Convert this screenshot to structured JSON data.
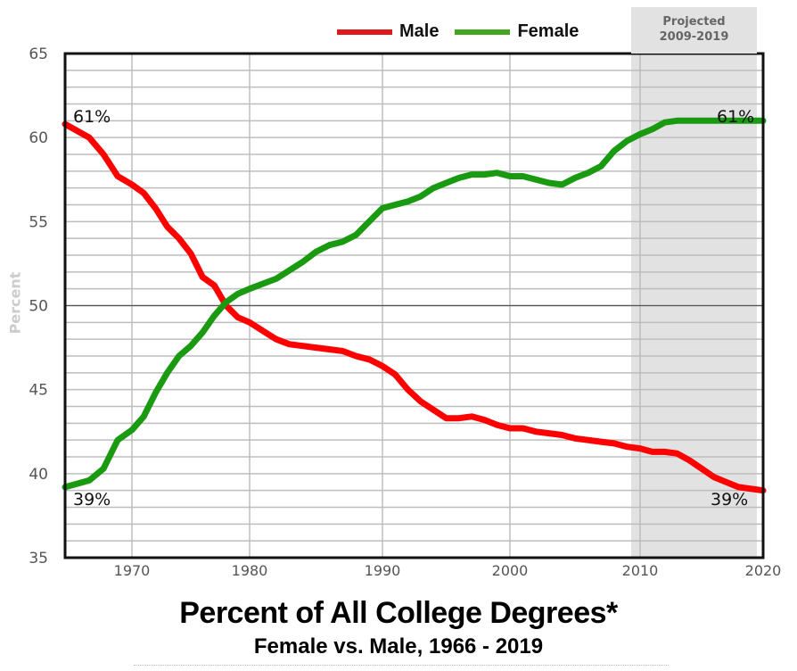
{
  "legend": {
    "male_label": "Male",
    "female_label": "Female",
    "male_color": "#e01a1a",
    "female_color": "#44a520"
  },
  "projection": {
    "label_line1": "Projected",
    "label_line2": "2009-2019",
    "color": "#e2e2e2"
  },
  "title": "Percent of All College Degrees*",
  "subtitle": "Female vs. Male, 1966 - 2019",
  "y_axis_label": "Percent",
  "annotations": {
    "male_start": "61%",
    "female_start": "39%",
    "female_end": "61%",
    "male_end": "39%"
  },
  "chart_data": {
    "type": "line",
    "title": "Percent of All College Degrees*",
    "subtitle": "Female vs. Male, 1966 - 2019",
    "xlabel": "",
    "ylabel": "Percent",
    "xlim": [
      1965.3,
      2020
    ],
    "ylim": [
      35,
      65
    ],
    "x_ticks": [
      1970,
      1980,
      1990,
      2000,
      2010,
      2020
    ],
    "y_ticks": [
      35,
      40,
      45,
      50,
      55,
      60,
      65
    ],
    "grid": true,
    "legend_position": "top",
    "shaded_region": {
      "from": 2009.3,
      "to": 2019.5,
      "label": "Projected 2009-2019"
    },
    "x": [
      1966,
      1967,
      1968,
      1969,
      1970,
      1971,
      1972,
      1973,
      1974,
      1975,
      1976,
      1977,
      1978,
      1979,
      1980,
      1981,
      1982,
      1983,
      1984,
      1985,
      1986,
      1987,
      1988,
      1989,
      1990,
      1991,
      1992,
      1993,
      1994,
      1995,
      1996,
      1997,
      1998,
      1999,
      2000,
      2001,
      2002,
      2003,
      2004,
      2005,
      2006,
      2007,
      2008,
      2009,
      2010,
      2011,
      2012,
      2013,
      2014,
      2015,
      2016,
      2017,
      2018,
      2019
    ],
    "series": [
      {
        "name": "Male",
        "color": "#ff0000",
        "values": [
          60.8,
          60.0,
          59.0,
          57.7,
          57.2,
          56.7,
          55.8,
          54.7,
          54.0,
          53.1,
          51.7,
          51.2,
          50.0,
          49.3,
          49.0,
          48.5,
          48.0,
          47.7,
          47.6,
          47.5,
          47.4,
          47.3,
          47.0,
          46.8,
          46.4,
          45.9,
          45.0,
          44.3,
          43.8,
          43.3,
          43.3,
          43.4,
          43.2,
          42.9,
          42.7,
          42.7,
          42.5,
          42.4,
          42.3,
          42.1,
          42.0,
          41.9,
          41.8,
          41.6,
          41.5,
          41.3,
          41.3,
          41.2,
          40.8,
          40.3,
          39.8,
          39.5,
          39.2,
          39.0
        ]
      },
      {
        "name": "Female",
        "color": "#1a9a10",
        "values": [
          39.2,
          39.6,
          40.3,
          42.0,
          42.6,
          43.4,
          44.8,
          46.0,
          47.0,
          47.6,
          48.4,
          49.4,
          50.2,
          50.7,
          51.0,
          51.3,
          51.6,
          52.1,
          52.6,
          53.2,
          53.6,
          53.8,
          54.2,
          55.0,
          55.8,
          56.0,
          56.2,
          56.5,
          57.0,
          57.3,
          57.6,
          57.8,
          57.8,
          57.9,
          57.7,
          57.7,
          57.5,
          57.3,
          57.2,
          57.6,
          57.9,
          58.3,
          59.2,
          59.8,
          60.2,
          60.5,
          60.9,
          61.0,
          61.0,
          61.0,
          61.0,
          61.0,
          61.0,
          61.0
        ]
      }
    ]
  }
}
